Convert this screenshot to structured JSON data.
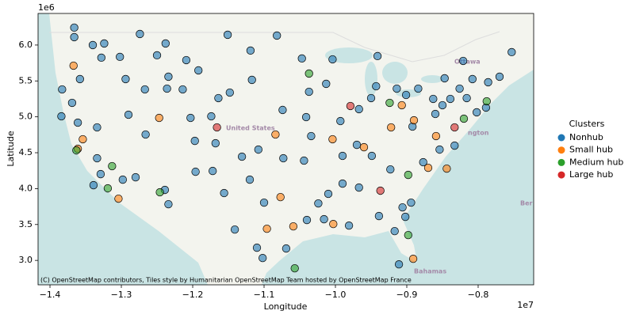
{
  "chart_data": {
    "type": "scatter",
    "x_label": "Longitude",
    "y_label": "Latitude",
    "x_offset_label": "1e7",
    "y_offset_label": "1e6",
    "legend_title": "Clusters",
    "legend_position": "right",
    "attribution": "(C) OpenStreetMap contributors, Tiles style by Humanitarian OpenStreetMap Team hosted by OpenStreetMap France",
    "map_labels": [
      "United States",
      "Ottawa",
      "ngton",
      "Bahamas",
      "Ber"
    ],
    "xlim": [
      -1.4167,
      -0.7222
    ],
    "ylim": [
      2.66,
      6.44
    ],
    "xticks": [
      {
        "value": -1.4,
        "label": "−1.4"
      },
      {
        "value": -1.3,
        "label": "−1.3"
      },
      {
        "value": -1.2,
        "label": "−1.2"
      },
      {
        "value": -1.1,
        "label": "−1.1"
      },
      {
        "value": -1.0,
        "label": "−1.0"
      },
      {
        "value": -0.9,
        "label": "−0.9"
      },
      {
        "value": -0.8,
        "label": "−0.8"
      }
    ],
    "yticks": [
      {
        "value": 3,
        "label": "3.0"
      },
      3.5,
      {
        "value": 4,
        "label": "4.0"
      },
      4.5,
      {
        "value": 5,
        "label": "5.0"
      },
      5.5,
      {
        "value": 6,
        "label": "6.0"
      }
    ],
    "series": [
      {
        "name": "Nonhub",
        "color": "#1f77b4",
        "x": [
          -1.366,
          -1.366,
          -1.34,
          -1.383,
          -1.384,
          -1.358,
          -1.369,
          -1.361,
          -1.324,
          -1.328,
          -1.302,
          -1.274,
          -1.238,
          -1.25,
          -1.209,
          -1.234,
          -1.236,
          -1.267,
          -1.294,
          -1.29,
          -1.266,
          -1.334,
          -1.334,
          -1.329,
          -1.339,
          -1.298,
          -1.28,
          -1.234,
          -1.239,
          -1.203,
          -1.197,
          -1.214,
          -1.192,
          -1.151,
          -1.119,
          -1.082,
          -1.117,
          -1.148,
          -1.164,
          -1.174,
          -1.168,
          -1.196,
          -1.172,
          -1.156,
          -1.131,
          -1.108,
          -1.073,
          -1.044,
          -1.034,
          -1.041,
          -1.074,
          -1.037,
          -1.047,
          -1.004,
          -1.013,
          -0.993,
          -0.99,
          -1.01,
          -0.981,
          -1.024,
          -1.04,
          -1.1,
          -1.12,
          -1.141,
          -1.11,
          -1.102,
          -1.069,
          -1.016,
          -0.967,
          -0.939,
          -0.943,
          -0.941,
          -0.914,
          -0.884,
          -0.863,
          -0.847,
          -0.826,
          -0.808,
          -0.786,
          -0.789,
          -0.802,
          -0.77,
          -0.753,
          -0.892,
          -0.877,
          -0.894,
          -0.906,
          -0.917,
          -0.911,
          -0.902,
          -0.949,
          -0.923,
          -0.967,
          -0.95,
          -0.99,
          -0.839,
          -0.816,
          -0.85,
          -0.86,
          -0.833,
          -0.854,
          -0.821,
          -0.901,
          -0.97
        ],
        "y": [
          6.243,
          6.11,
          6.0,
          5.382,
          5.007,
          5.526,
          5.195,
          4.919,
          6.022,
          5.824,
          5.835,
          6.154,
          6.022,
          5.857,
          5.79,
          5.559,
          5.393,
          5.382,
          5.526,
          5.029,
          4.754,
          4.853,
          4.423,
          4.202,
          4.048,
          4.125,
          4.158,
          3.783,
          3.982,
          4.985,
          4.665,
          5.382,
          5.647,
          6.143,
          5.923,
          6.132,
          5.515,
          5.338,
          5.261,
          5.007,
          4.632,
          4.235,
          4.246,
          3.938,
          4.445,
          4.544,
          4.423,
          4.39,
          4.732,
          4.996,
          5.096,
          5.349,
          5.813,
          5.801,
          5.46,
          4.941,
          4.07,
          3.927,
          3.485,
          3.794,
          3.563,
          3.805,
          4.125,
          3.43,
          3.177,
          3.033,
          3.166,
          3.574,
          4.015,
          3.618,
          5.426,
          5.846,
          5.393,
          5.393,
          5.25,
          5.537,
          5.393,
          5.526,
          5.482,
          5.129,
          5.063,
          5.559,
          5.901,
          4.864,
          4.368,
          3.805,
          3.739,
          3.408,
          2.945,
          3.607,
          4.456,
          4.268,
          5.107,
          5.261,
          4.456,
          5.25,
          5.261,
          5.162,
          5.04,
          4.599,
          4.544,
          5.779,
          5.305,
          4.61
        ]
      },
      {
        "name": "Small hub",
        "color": "#ff7f0e",
        "x": [
          -1.367,
          -1.354,
          -1.361,
          -1.304,
          -1.247,
          -1.084,
          -1.077,
          -1.096,
          -1.059,
          -1.004,
          -1.003,
          -0.96,
          -0.922,
          -0.907,
          -0.89,
          -0.859,
          -0.844,
          -0.87,
          -0.891
        ],
        "y": [
          5.713,
          4.688,
          4.555,
          3.86,
          4.985,
          4.754,
          3.882,
          3.441,
          3.474,
          4.688,
          3.507,
          4.577,
          4.853,
          5.162,
          4.952,
          4.732,
          4.279,
          4.29,
          3.022
        ]
      },
      {
        "name": "Medium hub",
        "color": "#2ca02c",
        "x": [
          -1.363,
          -1.313,
          -1.319,
          -1.246,
          -1.037,
          -0.924,
          -0.898,
          -0.898,
          -0.788,
          -0.82,
          -1.057
        ],
        "y": [
          4.533,
          4.313,
          4.004,
          3.949,
          5.603,
          5.195,
          4.191,
          3.353,
          5.217,
          4.974,
          2.89
        ]
      },
      {
        "name": "Large hub",
        "color": "#d62728",
        "x": [
          -1.166,
          -0.979,
          -0.937,
          -0.833
        ],
        "y": [
          4.853,
          5.151,
          3.971,
          4.853
        ]
      }
    ]
  }
}
